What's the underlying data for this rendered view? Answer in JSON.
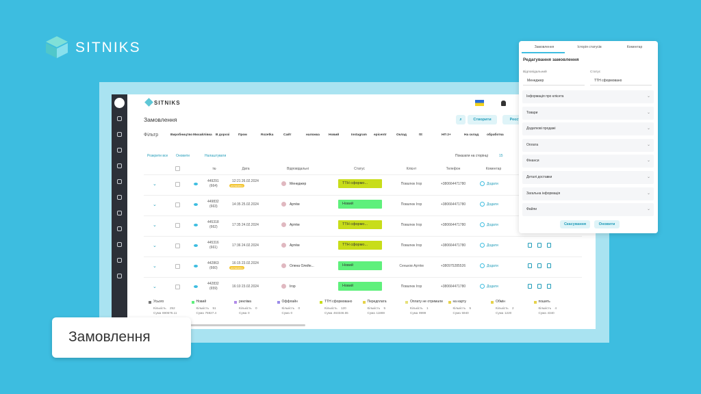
{
  "brand": "SITNIKS",
  "caption": "Замовлення",
  "app": {
    "brand": "SITNIKS",
    "title": "Замовлення",
    "buttons": [
      "Створити",
      "Реєстр"
    ],
    "filter_label": "Фільтр",
    "filters": [
      "Виробництво",
      "Михайлівка",
      "В дорозі",
      "Пром",
      "Rozetka",
      "Сайт",
      "наложка",
      "Новий",
      "Instagram",
      "epicentr",
      "Оклад",
      "ttt",
      "НП 2+",
      "На склад",
      "обработка"
    ],
    "toolbar": [
      "Розкрити все",
      "Оновити",
      "Налаштувати"
    ],
    "per_page_label": "Показати на сторінці",
    "per_page": "15",
    "columns": [
      "№",
      "Дата",
      "Відповідальні",
      "Статус",
      "Клієнт",
      "Телефон",
      "Коментар"
    ],
    "rows": [
      {
        "id": "449291",
        "num": "(664)",
        "date": "12:21 26.02.2024",
        "badge": "оплачено",
        "manager": "Менеджер",
        "status": "ТТН сформо...",
        "status_color": "#c8dd1a",
        "client": "Повалюк Ігор",
        "phone": "+380664471780",
        "comment": "Додати"
      },
      {
        "id": "449832",
        "num": "(663)",
        "date": "14:35 25.02.2024",
        "manager": "Артём",
        "status": "Новий",
        "status_color": "#5ff07c",
        "client": "Повалюк Ігор",
        "phone": "+380664471780",
        "comment": "Додати"
      },
      {
        "id": "445318",
        "num": "(662)",
        "date": "17:35 24.02.2024",
        "manager": "Артём",
        "status": "ТТН сформо...",
        "status_color": "#c8dd1a",
        "client": "Повалюк Ігор",
        "phone": "+380664471780",
        "comment": "Додати"
      },
      {
        "id": "445316",
        "num": "(661)",
        "date": "17:36 24.02.2024",
        "manager": "Артём",
        "status": "ТТН сформо...",
        "status_color": "#c8dd1a",
        "client": "Повалюк Ігор",
        "phone": "+380664471780",
        "comment": "Додати"
      },
      {
        "id": "442863",
        "num": "(660)",
        "date": "16:15 23.02.2024",
        "badge": "оплачено",
        "manager": "Олена Олейн...",
        "status": "Новий",
        "status_color": "#5ff07c",
        "client": "Сеньков Артём",
        "phone": "+380975285526",
        "comment": "Додати"
      },
      {
        "id": "442832",
        "num": "(659)",
        "date": "16:10 23.02.2024",
        "manager": "Ігор",
        "status": "Новий",
        "status_color": "#5ff07c",
        "client": "Повалюк Ігор",
        "phone": "+380664471780",
        "comment": "Додати"
      }
    ],
    "count_label": "Кількість",
    "sum_label": "Сума",
    "summary": [
      {
        "name": "Усього",
        "color": "#777777",
        "count": 252,
        "sum": 690676.11
      },
      {
        "name": "Новий",
        "color": "#5ff07c",
        "count": 51,
        "sum": 75927.4
      },
      {
        "name": "рекліма",
        "color": "#b08be8",
        "count": 0,
        "sum": 0
      },
      {
        "name": "Оффлайн",
        "color": "#9a8be8",
        "count": 0,
        "sum": 0
      },
      {
        "name": "ТТН сформовано",
        "color": "#c8dd1a",
        "count": 120,
        "sum": 463346.65
      },
      {
        "name": "Передплата",
        "color": "#e6d24a",
        "count": 5,
        "sum": 11869
      },
      {
        "name": "Оплату не отримали",
        "color": "#e6e07a",
        "count": 1,
        "sum": 9999
      },
      {
        "name": "на карту",
        "color": "#e6d24a",
        "count": 5,
        "sum": 5940
      },
      {
        "name": "Обмін",
        "color": "#e6d24a",
        "count": 2,
        "sum": 1220
      },
      {
        "name": "пошить",
        "color": "#e6d24a",
        "count": 4,
        "sum": 4340
      }
    ]
  },
  "panel": {
    "tabs": [
      "Замовлення",
      "Історія статусів",
      "Коментар"
    ],
    "title": "Редагування замовлення",
    "fields": [
      {
        "label": "Відповідальний",
        "value": "Менеджер"
      },
      {
        "label": "Статус",
        "value": "ТТН сформовано"
      }
    ],
    "sections": [
      "Інформація про клієнта",
      "Товари",
      "Додаткові продажі",
      "Оплата",
      "Фінанси",
      "Деталі доставки",
      "Загальна інформація",
      "Файли"
    ],
    "buttons": [
      "Скасування",
      "Оновити"
    ]
  }
}
